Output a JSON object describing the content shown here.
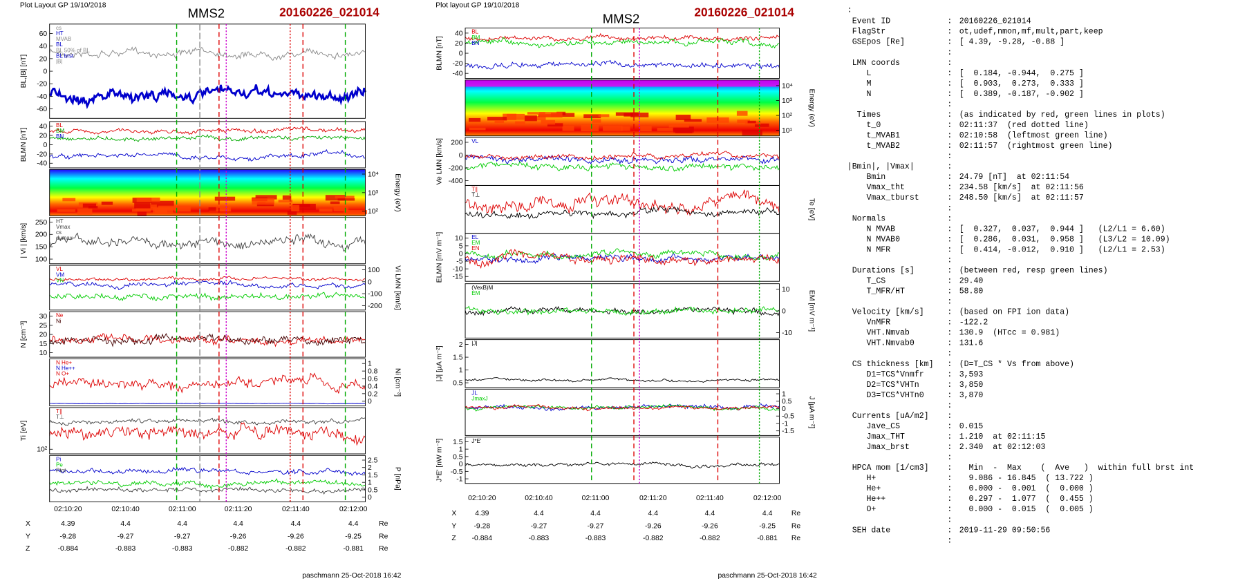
{
  "left": {
    "header": "Plot Layout GP 19/10/2018",
    "mms": "MMS2",
    "event": "20160226_021014",
    "panels": [
      {
        "label": "BL,|B| [nT]",
        "ticks": [
          60,
          40,
          20,
          0,
          -20,
          -40,
          -60
        ],
        "legend": [
          "cs",
          "HT",
          "MVAB",
          "BL",
          "BL 50% of BL",
          "BL brst",
          "|B|"
        ]
      },
      {
        "label": "BLMN [nT]",
        "ticks": [
          40,
          20,
          0,
          -20,
          -40
        ],
        "legend": [
          "BL",
          "BM",
          "BN"
        ]
      },
      {
        "label": "Energy (eV)",
        "ticks": [
          "10⁴",
          "10³",
          "10²"
        ],
        "legend": []
      },
      {
        "label": "| Vi | [km/s]",
        "ticks": [
          250,
          200,
          150,
          100
        ],
        "legend": [
          "HT",
          "Vmax",
          "cs",
          "dvmax"
        ]
      },
      {
        "label": "Vi LMN [km/s]",
        "ticks": [
          100,
          0,
          -100,
          -200
        ],
        "legend": [
          "VL",
          "VM",
          "VN"
        ]
      },
      {
        "label": "N [cm⁻³]",
        "ticks": [
          30,
          25,
          20,
          15,
          10
        ],
        "legend": [
          "Ne",
          "Ni"
        ]
      },
      {
        "label": "Ni [cm⁻³]",
        "ticks": [
          1.0,
          0.8,
          0.6,
          0.4,
          0.2,
          0.0
        ],
        "legend": [
          "N He+",
          "N He++",
          "N O+"
        ]
      },
      {
        "label": "Ti [eV]",
        "ticks": [
          "10²"
        ],
        "legend": [
          "T∥",
          "T⊥"
        ]
      },
      {
        "label": "P [nPa]",
        "ticks": [
          2.5,
          2.0,
          1.5,
          1.0,
          0.5,
          0.0
        ],
        "legend": [
          "Pi",
          "Pe",
          "Ptot"
        ]
      }
    ],
    "xticks": [
      "02:10:20",
      "02:10:40",
      "02:11:00",
      "02:11:20",
      "02:11:40",
      "02:12:00"
    ],
    "rows": [
      {
        "name": "X",
        "values": [
          4.39,
          4.4,
          4.4,
          4.4,
          4.4,
          4.4
        ],
        "unit": "Re"
      },
      {
        "name": "Y",
        "values": [
          -9.28,
          -9.27,
          -9.27,
          -9.26,
          -9.26,
          -9.25
        ],
        "unit": "Re"
      },
      {
        "name": "Z",
        "values": [
          -0.884,
          -0.883,
          -0.883,
          -0.882,
          -0.882,
          -0.881
        ],
        "unit": "Re"
      }
    ],
    "footer": "paschmann 25-Oct-2018 16:42"
  },
  "right": {
    "header": "Plot layout GP 19/10/2018",
    "mms": "MMS2",
    "event": "20160226_021014",
    "panels": [
      {
        "label": "BLMN [nT]",
        "ticks": [
          40,
          20,
          0,
          -20,
          -40
        ],
        "legend": [
          "BL",
          "BM",
          "BN"
        ]
      },
      {
        "label": "Energy (eV)",
        "ticks": [
          "10⁴",
          "10³",
          "10²",
          "10¹"
        ],
        "legend": []
      },
      {
        "label": "Ve LMN [km/s]",
        "ticks": [
          200,
          0,
          -200,
          -400
        ],
        "legend": [
          "VL"
        ]
      },
      {
        "label": "Te [eV]",
        "ticks": [],
        "legend": [
          "T∥",
          "T⊥"
        ]
      },
      {
        "label": "ELMN [mV m⁻¹]",
        "ticks": [
          10,
          5,
          0,
          -5,
          -10,
          -15
        ],
        "legend": [
          "EL",
          "EM",
          "EN"
        ]
      },
      {
        "label": "EM [mV m⁻¹]",
        "ticks": [
          10,
          0,
          -10
        ],
        "legend": [
          "(VexB)M",
          "EM"
        ]
      },
      {
        "label": "|J| [µA m⁻²]",
        "ticks": [
          2.0,
          1.5,
          1.0,
          0.5
        ],
        "legend": [
          "|J|"
        ]
      },
      {
        "label": "J [µA m⁻²]",
        "ticks": [
          1.0,
          0.5,
          0.0,
          -0.5,
          -1.0,
          -1.5
        ],
        "legend": [
          "JL",
          "JmaxJ"
        ]
      },
      {
        "label": "J*E' [nW m⁻³]",
        "ticks": [
          1.5,
          1.0,
          0.5,
          0.0,
          -0.5,
          -1.0
        ],
        "legend": [
          "J*E'"
        ]
      }
    ],
    "xticks": [
      "02:10:20",
      "02:10:40",
      "02:11:00",
      "02:11:20",
      "02:11:40",
      "02:12:00"
    ],
    "rows": [
      {
        "name": "X",
        "values": [
          4.39,
          4.4,
          4.4,
          4.4,
          4.4,
          4.4
        ],
        "unit": "Re"
      },
      {
        "name": "Y",
        "values": [
          -9.28,
          -9.27,
          -9.27,
          -9.26,
          -9.26,
          -9.25
        ],
        "unit": "Re"
      },
      {
        "name": "Z",
        "values": [
          -0.884,
          -0.883,
          -0.883,
          -0.882,
          -0.882,
          -0.881
        ],
        "unit": "Re"
      }
    ],
    "footer": "paschmann 25-Oct-2018 16:42"
  },
  "info": {
    "top": ":",
    "lines": [
      {
        "k": " Event ID",
        "v": "20160226_021014"
      },
      {
        "k": " FlagStr",
        "v": "ot,udef,nmon,mf,mult,part,keep"
      },
      {
        "k": " GSEpos [Re]",
        "v": "[ 4.39, -9.28, -0.88 ]"
      },
      {},
      {
        "k": " LMN coords"
      },
      {
        "k": "    L",
        "v": "[  0.184, -0.944,  0.275 ]"
      },
      {
        "k": "    M",
        "v": "[  0.903,  0.273,  0.333 ]"
      },
      {
        "k": "    N",
        "v": "[  0.389, -0.187, -0.902 ]"
      },
      {},
      {
        "k": "  Times",
        "v": "(as indicated by red, green lines in plots)"
      },
      {
        "k": "    t_0",
        "v": "02:11:37  (red dotted line)"
      },
      {
        "k": "    t_MVAB1",
        "v": "02:10:58  (leftmost green line)"
      },
      {
        "k": "    t_MVAB2",
        "v": "02:11:57  (rightmost green line)"
      },
      {},
      {
        "k": "|Bmin|, |Vmax|"
      },
      {
        "k": "    Bmin",
        "v": "24.79 [nT]  at 02:11:54"
      },
      {
        "k": "    Vmax_tht",
        "v": "234.58 [km/s]  at 02:11:56"
      },
      {
        "k": "    Vmax_tburst",
        "v": "248.50 [km/s]  at 02:11:57"
      },
      {},
      {
        "k": " Normals"
      },
      {
        "k": "    N MVAB",
        "v": "[  0.327,  0.037,  0.944 ]   (L2/L1 = 6.60)"
      },
      {
        "k": "    N MVAB0",
        "v": "[  0.286,  0.031,  0.958 ]   (L3/L2 = 10.09)"
      },
      {
        "k": "    N MFR",
        "v": "[  0.414, -0.012,  0.910 ]   (L2/L1 = 2.53)"
      },
      {},
      {
        "k": " Durations [s]",
        "v": "(between red, resp green lines)"
      },
      {
        "k": "    T_CS",
        "v": "29.40"
      },
      {
        "k": "    T_MFR/HT",
        "v": "58.80"
      },
      {},
      {
        "k": " Velocity [km/s]",
        "v": "(based on FPI ion data)"
      },
      {
        "k": "    VnMFR",
        "v": "-122.2"
      },
      {
        "k": "    VHT.Nmvab",
        "v": "130.9  (HTcc = 0.981)"
      },
      {
        "k": "    VHT.Nmvab0",
        "v": "131.6"
      },
      {},
      {
        "k": " CS thickness [km]",
        "v": "(D=T_CS * Vs from above)"
      },
      {
        "k": "    D1=TCS*Vnmfr",
        "v": "3,593"
      },
      {
        "k": "    D2=TCS*VHTn",
        "v": "3,850"
      },
      {
        "k": "    D3=TCS*VHTn0",
        "v": "3,870"
      },
      {},
      {
        "k": " Currents [uA/m2]"
      },
      {
        "k": "    Jave_CS",
        "v": "0.015"
      },
      {
        "k": "    Jmax_THT",
        "v": "1.210  at 02:11:15"
      },
      {
        "k": "    Jmax_brst",
        "v": "2.340  at 02:12:03"
      },
      {},
      {
        "k": " HPCA mom [1/cm3]",
        "v": "  Min  -  Max    (  Ave   )  within full brst int"
      },
      {
        "k": "    H+",
        "v": "  9.086 - 16.845  ( 13.722 )"
      },
      {
        "k": "    He+",
        "v": "  0.000 -  0.001  (  0.000 )"
      },
      {
        "k": "    He++",
        "v": "  0.297 -  1.077  (  0.455 )"
      },
      {
        "k": "    O+",
        "v": "  0.000 -  0.015  (  0.005 )"
      },
      {},
      {
        "k": " SEH date",
        "v": "2019-11-29 09:50:56"
      },
      {}
    ]
  }
}
